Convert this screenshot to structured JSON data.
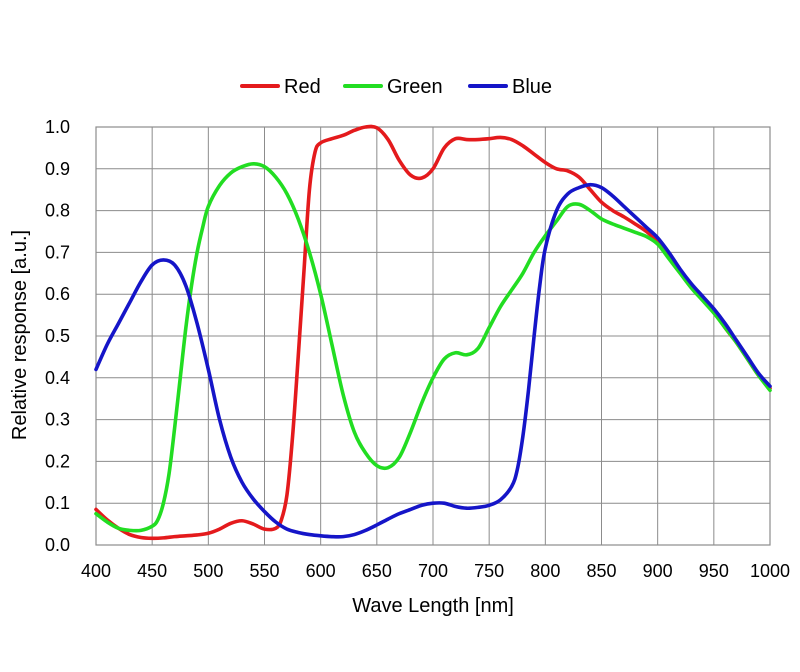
{
  "chart_data": {
    "type": "line",
    "title": "",
    "xlabel": "Wave Length [nm]",
    "ylabel": "Relative response [a.u.]",
    "xlim": [
      400,
      1000
    ],
    "ylim": [
      0.0,
      1.0
    ],
    "x_ticks": [
      400,
      450,
      500,
      550,
      600,
      650,
      700,
      750,
      800,
      850,
      900,
      950,
      1000
    ],
    "y_ticks": [
      "0.0",
      "0.1",
      "0.2",
      "0.3",
      "0.4",
      "0.5",
      "0.6",
      "0.7",
      "0.8",
      "0.9",
      "1.0"
    ],
    "grid": true,
    "legend_position": "top-center",
    "series": [
      {
        "name": "Red",
        "color": "#e41a1c",
        "points": [
          [
            400,
            0.085
          ],
          [
            410,
            0.06
          ],
          [
            420,
            0.04
          ],
          [
            430,
            0.025
          ],
          [
            440,
            0.018
          ],
          [
            450,
            0.016
          ],
          [
            460,
            0.017
          ],
          [
            470,
            0.02
          ],
          [
            480,
            0.022
          ],
          [
            490,
            0.024
          ],
          [
            500,
            0.028
          ],
          [
            510,
            0.038
          ],
          [
            520,
            0.052
          ],
          [
            530,
            0.058
          ],
          [
            540,
            0.05
          ],
          [
            550,
            0.038
          ],
          [
            560,
            0.04
          ],
          [
            565,
            0.06
          ],
          [
            570,
            0.12
          ],
          [
            575,
            0.26
          ],
          [
            580,
            0.45
          ],
          [
            585,
            0.65
          ],
          [
            590,
            0.85
          ],
          [
            595,
            0.94
          ],
          [
            600,
            0.962
          ],
          [
            610,
            0.972
          ],
          [
            620,
            0.98
          ],
          [
            630,
            0.992
          ],
          [
            640,
            1.0
          ],
          [
            650,
            0.998
          ],
          [
            660,
            0.97
          ],
          [
            670,
            0.92
          ],
          [
            680,
            0.885
          ],
          [
            690,
            0.878
          ],
          [
            700,
            0.9
          ],
          [
            710,
            0.95
          ],
          [
            720,
            0.972
          ],
          [
            730,
            0.97
          ],
          [
            740,
            0.97
          ],
          [
            750,
            0.972
          ],
          [
            760,
            0.975
          ],
          [
            770,
            0.97
          ],
          [
            780,
            0.955
          ],
          [
            790,
            0.935
          ],
          [
            800,
            0.915
          ],
          [
            810,
            0.9
          ],
          [
            820,
            0.895
          ],
          [
            830,
            0.88
          ],
          [
            840,
            0.85
          ],
          [
            850,
            0.82
          ],
          [
            860,
            0.8
          ],
          [
            870,
            0.785
          ],
          [
            880,
            0.768
          ],
          [
            890,
            0.75
          ],
          [
            900,
            0.725
          ],
          [
            910,
            0.69
          ],
          [
            920,
            0.655
          ],
          [
            930,
            0.62
          ],
          [
            940,
            0.59
          ],
          [
            950,
            0.56
          ],
          [
            960,
            0.52
          ],
          [
            970,
            0.485
          ],
          [
            980,
            0.445
          ],
          [
            990,
            0.405
          ],
          [
            1000,
            0.375
          ]
        ]
      },
      {
        "name": "Green",
        "color": "#22dd22",
        "points": [
          [
            400,
            0.075
          ],
          [
            410,
            0.055
          ],
          [
            420,
            0.04
          ],
          [
            430,
            0.035
          ],
          [
            440,
            0.035
          ],
          [
            450,
            0.045
          ],
          [
            455,
            0.06
          ],
          [
            460,
            0.1
          ],
          [
            465,
            0.17
          ],
          [
            470,
            0.28
          ],
          [
            475,
            0.4
          ],
          [
            480,
            0.52
          ],
          [
            485,
            0.62
          ],
          [
            490,
            0.7
          ],
          [
            495,
            0.76
          ],
          [
            500,
            0.81
          ],
          [
            510,
            0.86
          ],
          [
            520,
            0.89
          ],
          [
            530,
            0.905
          ],
          [
            540,
            0.912
          ],
          [
            550,
            0.905
          ],
          [
            560,
            0.88
          ],
          [
            570,
            0.84
          ],
          [
            580,
            0.78
          ],
          [
            590,
            0.7
          ],
          [
            600,
            0.6
          ],
          [
            610,
            0.48
          ],
          [
            620,
            0.36
          ],
          [
            630,
            0.27
          ],
          [
            640,
            0.22
          ],
          [
            650,
            0.19
          ],
          [
            660,
            0.185
          ],
          [
            670,
            0.21
          ],
          [
            680,
            0.27
          ],
          [
            690,
            0.34
          ],
          [
            700,
            0.4
          ],
          [
            710,
            0.445
          ],
          [
            720,
            0.46
          ],
          [
            730,
            0.455
          ],
          [
            740,
            0.47
          ],
          [
            750,
            0.52
          ],
          [
            760,
            0.57
          ],
          [
            770,
            0.61
          ],
          [
            780,
            0.65
          ],
          [
            790,
            0.7
          ],
          [
            800,
            0.74
          ],
          [
            810,
            0.775
          ],
          [
            820,
            0.81
          ],
          [
            830,
            0.815
          ],
          [
            840,
            0.8
          ],
          [
            850,
            0.78
          ],
          [
            860,
            0.768
          ],
          [
            870,
            0.758
          ],
          [
            880,
            0.748
          ],
          [
            890,
            0.738
          ],
          [
            900,
            0.72
          ],
          [
            910,
            0.685
          ],
          [
            920,
            0.65
          ],
          [
            930,
            0.615
          ],
          [
            940,
            0.585
          ],
          [
            950,
            0.555
          ],
          [
            960,
            0.52
          ],
          [
            970,
            0.485
          ],
          [
            980,
            0.445
          ],
          [
            990,
            0.405
          ],
          [
            1000,
            0.37
          ]
        ]
      },
      {
        "name": "Blue",
        "color": "#1515c8",
        "points": [
          [
            400,
            0.42
          ],
          [
            410,
            0.48
          ],
          [
            420,
            0.53
          ],
          [
            430,
            0.58
          ],
          [
            440,
            0.63
          ],
          [
            450,
            0.67
          ],
          [
            460,
            0.682
          ],
          [
            470,
            0.67
          ],
          [
            480,
            0.62
          ],
          [
            490,
            0.53
          ],
          [
            500,
            0.42
          ],
          [
            510,
            0.3
          ],
          [
            520,
            0.21
          ],
          [
            530,
            0.15
          ],
          [
            540,
            0.11
          ],
          [
            550,
            0.08
          ],
          [
            560,
            0.055
          ],
          [
            570,
            0.038
          ],
          [
            580,
            0.03
          ],
          [
            590,
            0.025
          ],
          [
            600,
            0.022
          ],
          [
            610,
            0.02
          ],
          [
            620,
            0.02
          ],
          [
            630,
            0.025
          ],
          [
            640,
            0.035
          ],
          [
            650,
            0.048
          ],
          [
            660,
            0.062
          ],
          [
            670,
            0.075
          ],
          [
            680,
            0.085
          ],
          [
            690,
            0.095
          ],
          [
            700,
            0.1
          ],
          [
            710,
            0.1
          ],
          [
            720,
            0.092
          ],
          [
            730,
            0.088
          ],
          [
            740,
            0.09
          ],
          [
            750,
            0.095
          ],
          [
            760,
            0.108
          ],
          [
            770,
            0.14
          ],
          [
            775,
            0.18
          ],
          [
            780,
            0.26
          ],
          [
            785,
            0.37
          ],
          [
            790,
            0.5
          ],
          [
            795,
            0.62
          ],
          [
            800,
            0.71
          ],
          [
            810,
            0.8
          ],
          [
            820,
            0.84
          ],
          [
            830,
            0.855
          ],
          [
            840,
            0.862
          ],
          [
            850,
            0.855
          ],
          [
            860,
            0.835
          ],
          [
            870,
            0.81
          ],
          [
            880,
            0.785
          ],
          [
            890,
            0.76
          ],
          [
            900,
            0.735
          ],
          [
            910,
            0.7
          ],
          [
            920,
            0.66
          ],
          [
            930,
            0.625
          ],
          [
            940,
            0.595
          ],
          [
            950,
            0.565
          ],
          [
            960,
            0.53
          ],
          [
            970,
            0.49
          ],
          [
            980,
            0.45
          ],
          [
            990,
            0.41
          ],
          [
            1000,
            0.38
          ]
        ]
      }
    ]
  }
}
